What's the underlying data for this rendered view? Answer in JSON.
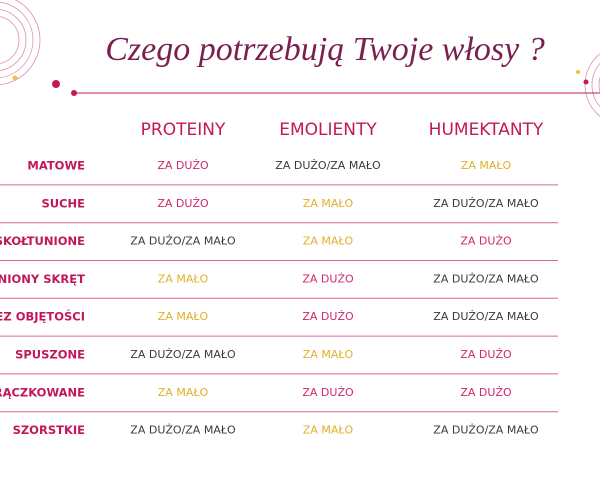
{
  "title": "Czego potrzebują Twoje włosy ?",
  "table": {
    "columns": [
      "PROTEINY",
      "EMOLIENTY",
      "HUMEKTANTY"
    ],
    "value_colors": {
      "ZA DUŻO": "#d0266d",
      "ZA MAŁO": "#e0b02c",
      "ZA DUŻO/ZA MAŁO": "#3a3a3a"
    },
    "rows": [
      {
        "label": "MATOWE",
        "cells": [
          "ZA DUŻO",
          "ZA DUŻO/ZA MAŁO",
          "ZA MAŁO"
        ]
      },
      {
        "label": "SUCHE",
        "cells": [
          "ZA DUŻO",
          "ZA MAŁO",
          "ZA DUŻO/ZA MAŁO"
        ]
      },
      {
        "label": "SKOŁTUNIONE",
        "cells": [
          "ZA DUŻO/ZA MAŁO",
          "ZA MAŁO",
          "ZA DUŻO"
        ]
      },
      {
        "label": "ENIONY SKRĘT",
        "cells": [
          "ZA MAŁO",
          "ZA DUŻO",
          "ZA DUŻO/ZA MAŁO"
        ]
      },
      {
        "label": "EZ OBJĘTOŚCI",
        "cells": [
          "ZA MAŁO",
          "ZA DUŻO",
          "ZA DUŻO/ZA MAŁO"
        ]
      },
      {
        "label": "SPUSZONE",
        "cells": [
          "ZA DUŻO/ZA MAŁO",
          "ZA MAŁO",
          "ZA DUŻO"
        ]
      },
      {
        "label": "RĄCZKOWANE",
        "cells": [
          "ZA MAŁO",
          "ZA DUŻO",
          "ZA DUŻO"
        ]
      },
      {
        "label": "SZORSTKIE",
        "cells": [
          "ZA DUŻO/ZA MAŁO",
          "ZA MAŁO",
          "ZA DUŻO/ZA MAŁO"
        ]
      }
    ]
  }
}
